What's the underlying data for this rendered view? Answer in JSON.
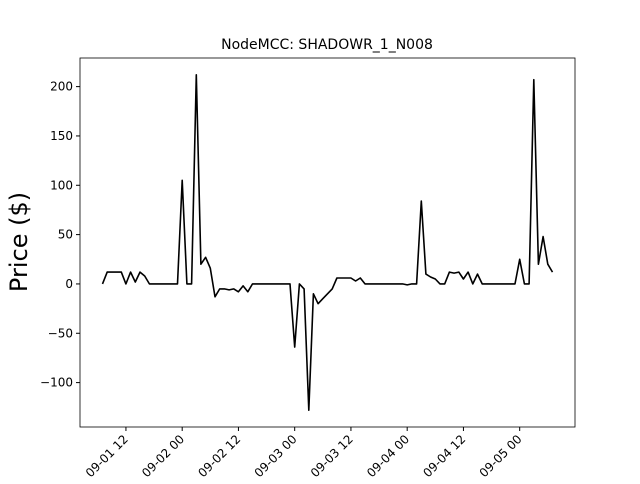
{
  "chart_data": {
    "type": "line",
    "title": "NodeMCC: SHADOWR_1_N008",
    "y_label": "Price ($)",
    "x": [
      "09-01 07",
      "09-01 08",
      "09-01 09",
      "09-01 10",
      "09-01 11",
      "09-01 12",
      "09-01 13",
      "09-01 14",
      "09-01 15",
      "09-01 16",
      "09-01 17",
      "09-01 18",
      "09-01 19",
      "09-01 20",
      "09-01 21",
      "09-01 22",
      "09-01 23",
      "09-02 00",
      "09-02 01",
      "09-02 02",
      "09-02 03",
      "09-02 04",
      "09-02 05",
      "09-02 06",
      "09-02 07",
      "09-02 08",
      "09-02 09",
      "09-02 10",
      "09-02 11",
      "09-02 12",
      "09-02 13",
      "09-02 14",
      "09-02 15",
      "09-02 16",
      "09-02 17",
      "09-02 18",
      "09-02 19",
      "09-02 20",
      "09-02 21",
      "09-02 22",
      "09-02 23",
      "09-03 00",
      "09-03 01",
      "09-03 02",
      "09-03 03",
      "09-03 04",
      "09-03 05",
      "09-03 06",
      "09-03 07",
      "09-03 08",
      "09-03 09",
      "09-03 10",
      "09-03 11",
      "09-03 12",
      "09-03 13",
      "09-03 14",
      "09-03 15",
      "09-03 16",
      "09-03 17",
      "09-03 18",
      "09-03 19",
      "09-03 20",
      "09-03 21",
      "09-03 22",
      "09-03 23",
      "09-04 00",
      "09-04 01",
      "09-04 02",
      "09-04 03",
      "09-04 04",
      "09-04 05",
      "09-04 06",
      "09-04 07",
      "09-04 08",
      "09-04 09",
      "09-04 10",
      "09-04 11",
      "09-04 12",
      "09-04 13",
      "09-04 14",
      "09-04 15",
      "09-04 16",
      "09-04 17",
      "09-04 18",
      "09-04 19",
      "09-04 20",
      "09-04 21",
      "09-04 22",
      "09-04 23",
      "09-05 00",
      "09-05 01",
      "09-05 02",
      "09-05 03",
      "09-05 04",
      "09-05 05",
      "09-05 06",
      "09-05 07"
    ],
    "series": [
      {
        "color": "#000000",
        "values": [
          0,
          12,
          12,
          12,
          12,
          0,
          12,
          2,
          12,
          8,
          0,
          0,
          0,
          0,
          0,
          0,
          0,
          105,
          0,
          0,
          212,
          20,
          27,
          16,
          -13,
          -5,
          -5,
          -6,
          -5,
          -8,
          -2,
          -8,
          0,
          0,
          0,
          0,
          0,
          0,
          0,
          0,
          0,
          -64,
          0,
          -5,
          -128,
          -10,
          -20,
          -15,
          -10,
          -5,
          6,
          6,
          6,
          6,
          3,
          6,
          0,
          0,
          0,
          0,
          0,
          0,
          0,
          0,
          0,
          -1,
          0,
          0,
          84,
          10,
          7,
          5,
          0,
          0,
          12,
          11,
          12,
          5,
          12,
          0,
          10,
          0,
          0,
          0,
          0,
          0,
          0,
          0,
          0,
          25,
          0,
          0,
          207,
          20,
          48,
          20,
          12
        ]
      }
    ],
    "xticks": [
      "09-01 12",
      "09-02 00",
      "09-02 12",
      "09-03 00",
      "09-03 12",
      "09-04 00",
      "09-04 12",
      "09-05 00"
    ],
    "ylim": [
      -145,
      229
    ],
    "yticks": [
      {
        "value": -100,
        "label": "−100"
      },
      {
        "value": -50,
        "label": "−50"
      },
      0,
      50,
      100,
      150,
      200
    ]
  }
}
